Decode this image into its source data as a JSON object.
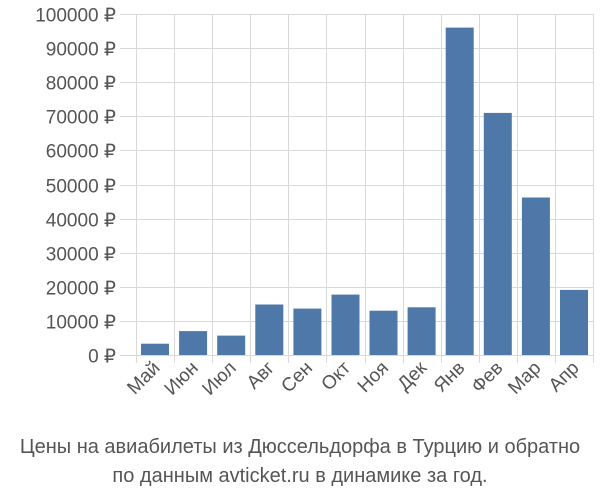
{
  "chart_data": {
    "type": "bar",
    "title": "",
    "xlabel": "",
    "ylabel": "",
    "currency_symbol": "₽",
    "categories": [
      "Май",
      "Июн",
      "Июл",
      "Авг",
      "Сен",
      "Окт",
      "Ноя",
      "Дек",
      "Янв",
      "Фев",
      "Мар",
      "Апр"
    ],
    "values": [
      3300,
      7000,
      5700,
      14800,
      13600,
      17700,
      13000,
      14000,
      96000,
      71000,
      46200,
      19100
    ],
    "ylim": [
      0,
      100000
    ],
    "yticks": [
      0,
      10000,
      20000,
      30000,
      40000,
      50000,
      60000,
      70000,
      80000,
      90000,
      100000
    ],
    "ytick_labels": [
      "0 ₽",
      "10000 ₽",
      "20000 ₽",
      "30000 ₽",
      "40000 ₽",
      "50000 ₽",
      "60000 ₽",
      "70000 ₽",
      "80000 ₽",
      "90000 ₽",
      "100000 ₽"
    ],
    "grid": true,
    "bar_color": "#4e78a8",
    "grid_color": "#d8d8d8",
    "text_color": "#555555"
  },
  "caption": {
    "line1": "Цены на авиабилеты из Дюссельдорфа в Турцию и обратно",
    "line2": "по данным avticket.ru в динамике за год."
  }
}
